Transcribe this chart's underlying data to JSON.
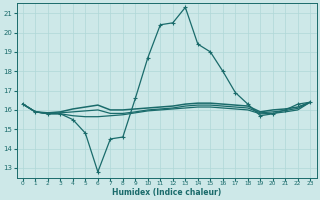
{
  "xlabel": "Humidex (Indice chaleur)",
  "ylabel": "",
  "xlim": [
    -0.5,
    23.5
  ],
  "ylim": [
    12.5,
    21.5
  ],
  "xticks": [
    0,
    1,
    2,
    3,
    4,
    5,
    6,
    7,
    8,
    9,
    10,
    11,
    12,
    13,
    14,
    15,
    16,
    17,
    18,
    19,
    20,
    21,
    22,
    23
  ],
  "yticks": [
    13,
    14,
    15,
    16,
    17,
    18,
    19,
    20,
    21
  ],
  "bg_color": "#cde8e8",
  "line_color": "#1a6b6b",
  "grid_color": "#b0d8d8",
  "line1_x": [
    0,
    1,
    2,
    3,
    4,
    5,
    6,
    7,
    8,
    9,
    10,
    11,
    12,
    13,
    14,
    15,
    16,
    17,
    18,
    19,
    20,
    21,
    22,
    23
  ],
  "line1_y": [
    16.3,
    15.9,
    15.8,
    15.8,
    15.5,
    14.8,
    12.8,
    14.5,
    14.6,
    16.6,
    18.7,
    20.4,
    20.5,
    21.3,
    19.4,
    19.0,
    18.0,
    16.9,
    16.3,
    15.7,
    15.8,
    16.0,
    16.3,
    16.4
  ],
  "line2_x": [
    0,
    1,
    2,
    3,
    4,
    5,
    6,
    7,
    8,
    9,
    10,
    11,
    12,
    13,
    14,
    15,
    16,
    17,
    18,
    19,
    20,
    21,
    22,
    23
  ],
  "line2_y": [
    16.3,
    15.9,
    15.85,
    15.9,
    16.05,
    16.15,
    16.25,
    16.0,
    16.0,
    16.05,
    16.1,
    16.15,
    16.2,
    16.3,
    16.35,
    16.35,
    16.3,
    16.25,
    16.2,
    15.9,
    16.0,
    16.05,
    16.15,
    16.4
  ],
  "line3_x": [
    0,
    1,
    2,
    3,
    4,
    5,
    6,
    7,
    8,
    9,
    10,
    11,
    12,
    13,
    14,
    15,
    16,
    17,
    18,
    19,
    20,
    21,
    22,
    23
  ],
  "line3_y": [
    16.3,
    15.9,
    15.8,
    15.8,
    15.7,
    15.65,
    15.65,
    15.7,
    15.75,
    15.85,
    15.95,
    16.0,
    16.05,
    16.1,
    16.15,
    16.15,
    16.1,
    16.05,
    16.0,
    15.8,
    15.82,
    15.9,
    16.0,
    16.4
  ],
  "line4_x": [
    0,
    1,
    2,
    3,
    4,
    5,
    6,
    7,
    8,
    9,
    10,
    11,
    12,
    13,
    14,
    15,
    16,
    17,
    18,
    19,
    20,
    21,
    22,
    23
  ],
  "line4_y": [
    16.3,
    15.9,
    15.82,
    15.85,
    15.9,
    15.95,
    16.0,
    15.82,
    15.82,
    15.9,
    16.0,
    16.05,
    16.1,
    16.2,
    16.25,
    16.25,
    16.2,
    16.15,
    16.1,
    15.85,
    15.9,
    15.97,
    16.08,
    16.4
  ]
}
